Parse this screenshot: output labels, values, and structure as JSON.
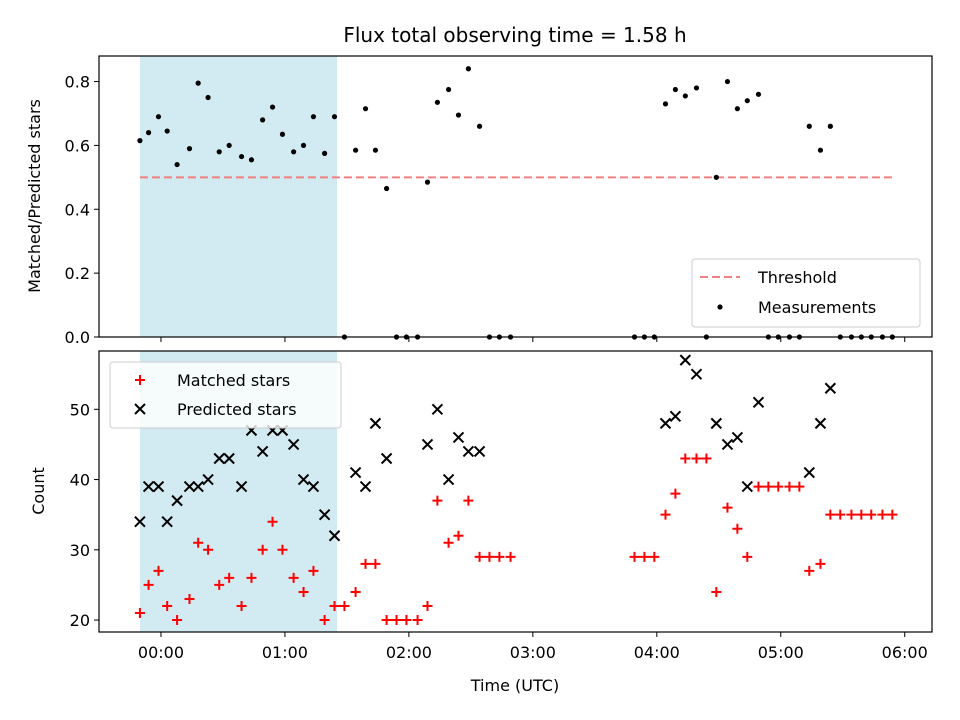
{
  "chart_data": [
    {
      "type": "scatter",
      "title": "Flux total observing time = 1.58 h",
      "xlabel": "",
      "ylabel": "Matched/Predicted stars",
      "ylim": [
        0,
        0.88
      ],
      "yticks": [
        0.0,
        0.2,
        0.4,
        0.6,
        0.8
      ],
      "ytick_labels": [
        "0.0",
        "0.2",
        "0.4",
        "0.6",
        "0.8"
      ],
      "xlim_hours": [
        -0.5,
        6.22
      ],
      "xticks_hours": [
        0,
        1,
        2,
        3,
        4,
        5,
        6
      ],
      "xtick_labels": [
        "00:00",
        "01:00",
        "02:00",
        "03:00",
        "04:00",
        "05:00",
        "06:00"
      ],
      "shaded_span_hours": [
        -0.17,
        1.42
      ],
      "shaded_color": "#add8e6",
      "threshold": {
        "name": "Threshold",
        "value": 0.5,
        "x_range_hours": [
          -0.17,
          5.9
        ],
        "color": "#f08080"
      },
      "series": [
        {
          "name": "Measurements",
          "color": "#000000",
          "x": [
            -0.17,
            -0.1,
            -0.02,
            0.05,
            0.13,
            0.23,
            0.3,
            0.38,
            0.47,
            0.55,
            0.65,
            0.73,
            0.82,
            0.9,
            0.98,
            1.07,
            1.15,
            1.23,
            1.32,
            1.4,
            1.48,
            1.57,
            1.65,
            1.73,
            1.82,
            1.9,
            1.98,
            2.07,
            2.15,
            2.23,
            2.32,
            2.4,
            2.48,
            2.57,
            2.65,
            2.73,
            2.82,
            3.82,
            3.9,
            3.98,
            4.07,
            4.15,
            4.23,
            4.32,
            4.4,
            4.48,
            4.57,
            4.65,
            4.73,
            4.82,
            4.9,
            4.98,
            5.07,
            5.15,
            5.23,
            5.32,
            5.4,
            5.48,
            5.57,
            5.65,
            5.73,
            5.82,
            5.9
          ],
          "y": [
            0.615,
            0.64,
            0.69,
            0.645,
            0.54,
            0.59,
            0.795,
            0.75,
            0.58,
            0.6,
            0.565,
            0.555,
            0.68,
            0.72,
            0.635,
            0.58,
            0.6,
            0.69,
            0.575,
            0.69,
            0.0,
            0.585,
            0.715,
            0.585,
            0.465,
            0.0,
            0.0,
            0.0,
            0.485,
            0.735,
            0.775,
            0.695,
            0.84,
            0.66,
            0.0,
            0.0,
            0.0,
            0.0,
            0.0,
            0.0,
            0.73,
            0.775,
            0.755,
            0.78,
            0.0,
            0.5,
            0.8,
            0.715,
            0.74,
            0.76,
            0.0,
            0.0,
            0.0,
            0.0,
            0.66,
            0.585,
            0.66,
            0.0,
            0.0,
            0.0,
            0.0,
            0.0,
            0.0
          ]
        }
      ],
      "legend": {
        "placement": "lower-right",
        "entries": [
          "Threshold",
          "Measurements"
        ]
      }
    },
    {
      "type": "scatter",
      "title": "",
      "xlabel": "Time (UTC)",
      "ylabel": "Count",
      "ylim": [
        18.3,
        58.3
      ],
      "yticks": [
        20,
        30,
        40,
        50
      ],
      "ytick_labels": [
        "20",
        "30",
        "40",
        "50"
      ],
      "xlim_hours": [
        -0.5,
        6.22
      ],
      "xticks_hours": [
        0,
        1,
        2,
        3,
        4,
        5,
        6
      ],
      "xtick_labels": [
        "00:00",
        "01:00",
        "02:00",
        "03:00",
        "04:00",
        "05:00",
        "06:00"
      ],
      "shaded_span_hours": [
        -0.17,
        1.42
      ],
      "shaded_color": "#add8e6",
      "series": [
        {
          "name": "Matched stars",
          "marker": "plus",
          "color": "#ff0000",
          "x": [
            -0.17,
            -0.1,
            -0.02,
            0.05,
            0.13,
            0.23,
            0.3,
            0.38,
            0.47,
            0.55,
            0.65,
            0.73,
            0.82,
            0.9,
            0.98,
            1.07,
            1.15,
            1.23,
            1.32,
            1.4,
            1.48,
            1.57,
            1.65,
            1.73,
            1.82,
            1.9,
            1.98,
            2.07,
            2.15,
            2.23,
            2.32,
            2.4,
            2.48,
            2.57,
            2.65,
            2.73,
            2.82,
            3.82,
            3.9,
            3.98,
            4.07,
            4.15,
            4.23,
            4.32,
            4.4,
            4.48,
            4.57,
            4.65,
            4.73,
            4.82,
            4.9,
            4.98,
            5.07,
            5.15,
            5.23,
            5.32,
            5.4,
            5.48,
            5.57,
            5.65,
            5.73,
            5.82,
            5.9
          ],
          "y": [
            21,
            25,
            27,
            22,
            20,
            23,
            31,
            30,
            25,
            26,
            22,
            26,
            30,
            34,
            30,
            26,
            24,
            27,
            20,
            22,
            22,
            24,
            28,
            28,
            20,
            20,
            20,
            20,
            22,
            37,
            31,
            32,
            37,
            29,
            29,
            29,
            29,
            29,
            29,
            29,
            35,
            38,
            43,
            43,
            43,
            24,
            36,
            33,
            29,
            39,
            39,
            39,
            39,
            39,
            27,
            28,
            35,
            35,
            35,
            35,
            35,
            35,
            35
          ]
        },
        {
          "name": "Predicted stars",
          "marker": "x",
          "color": "#000000",
          "x": [
            -0.17,
            -0.1,
            -0.02,
            0.05,
            0.13,
            0.23,
            0.3,
            0.38,
            0.47,
            0.55,
            0.65,
            0.73,
            0.82,
            0.9,
            0.98,
            1.07,
            1.15,
            1.23,
            1.32,
            1.4,
            1.57,
            1.65,
            1.73,
            1.82,
            2.15,
            2.23,
            2.32,
            2.4,
            2.48,
            2.57,
            4.07,
            4.15,
            4.23,
            4.32,
            4.48,
            4.57,
            4.65,
            4.73,
            4.82,
            5.23,
            5.32,
            5.4
          ],
          "y": [
            34,
            39,
            39,
            34,
            37,
            39,
            39,
            40,
            43,
            43,
            39,
            47,
            44,
            47,
            47,
            45,
            40,
            39,
            35,
            32,
            41,
            39,
            48,
            43,
            45,
            50,
            40,
            46,
            44,
            44,
            48,
            49,
            57,
            55,
            48,
            45,
            46,
            39,
            51,
            41,
            48,
            53
          ]
        }
      ],
      "legend": {
        "placement": "upper-left",
        "entries": [
          "Matched stars",
          "Predicted stars"
        ]
      }
    }
  ]
}
